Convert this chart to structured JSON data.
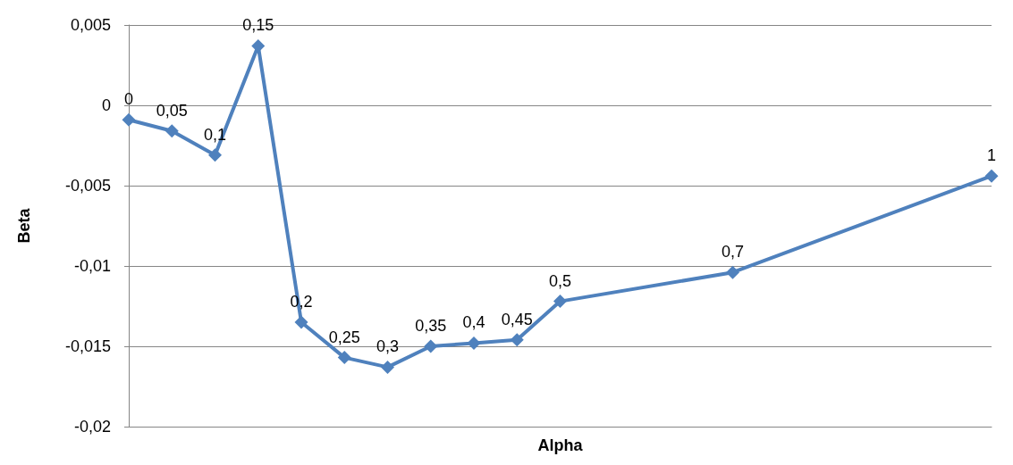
{
  "chart_data": {
    "type": "line",
    "xlabel": "Alpha",
    "ylabel": "Beta",
    "categories": [
      null,
      null,
      null,
      null,
      null,
      null,
      null,
      null,
      null,
      null,
      null,
      null,
      null,
      null,
      null,
      null,
      null,
      null,
      null,
      null,
      null
    ],
    "series": [
      {
        "color": "#4f81bd",
        "values": [
          -0.0009,
          -0.0016,
          -0.0031,
          0.0037,
          -0.0135,
          -0.0157,
          -0.0163,
          -0.015,
          -0.0148,
          -0.0146,
          -0.0122,
          null,
          null,
          null,
          -0.0104,
          null,
          null,
          null,
          null,
          null,
          -0.0044
        ]
      }
    ],
    "annotations": [
      "0",
      "0,05",
      "0,1",
      "0,15",
      "0,2",
      "0,25",
      "0,3",
      "0,35",
      "0,4",
      "0,45",
      "0,5",
      "0,7",
      "1"
    ],
    "ylim": [
      -0.02,
      0.005
    ],
    "yticks": [
      {
        "value": -0.02,
        "label": "-0,02"
      },
      {
        "value": -0.015,
        "label": "-0,015"
      },
      {
        "value": -0.01,
        "label": "-0,01"
      },
      {
        "value": -0.005,
        "label": "-0,005"
      },
      {
        "value": 0,
        "label": "0"
      },
      {
        "value": 0.005,
        "label": "0,005"
      }
    ],
    "tick_labels": "y",
    "grid": "y",
    "marker": "diamond",
    "line_style": "solid"
  }
}
